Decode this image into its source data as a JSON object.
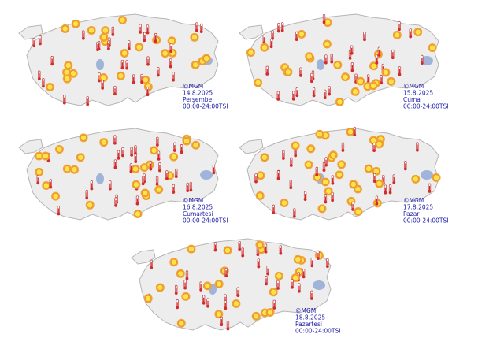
{
  "maps": [
    {
      "copyright": "©MGM",
      "date": "14.8.2025",
      "day": "Perşembe",
      "time": "00:00-24:00TSI"
    },
    {
      "copyright": "©MGM",
      "date": "15.8.2025",
      "day": "Cuma",
      "time": "00:00-24:00TSI"
    },
    {
      "copyright": "©MGM",
      "date": "16.8.2025",
      "day": "Cumartesi",
      "time": "00:00-24:00TSI"
    },
    {
      "copyright": "©MGM",
      "date": "17.8.2025",
      "day": "Pazar",
      "time": "00:00-24:00TSI"
    },
    {
      "copyright": "©MGM",
      "date": "18.8.2025",
      "day": "Pazartesi",
      "time": "00:00-24:00TSI"
    }
  ]
}
